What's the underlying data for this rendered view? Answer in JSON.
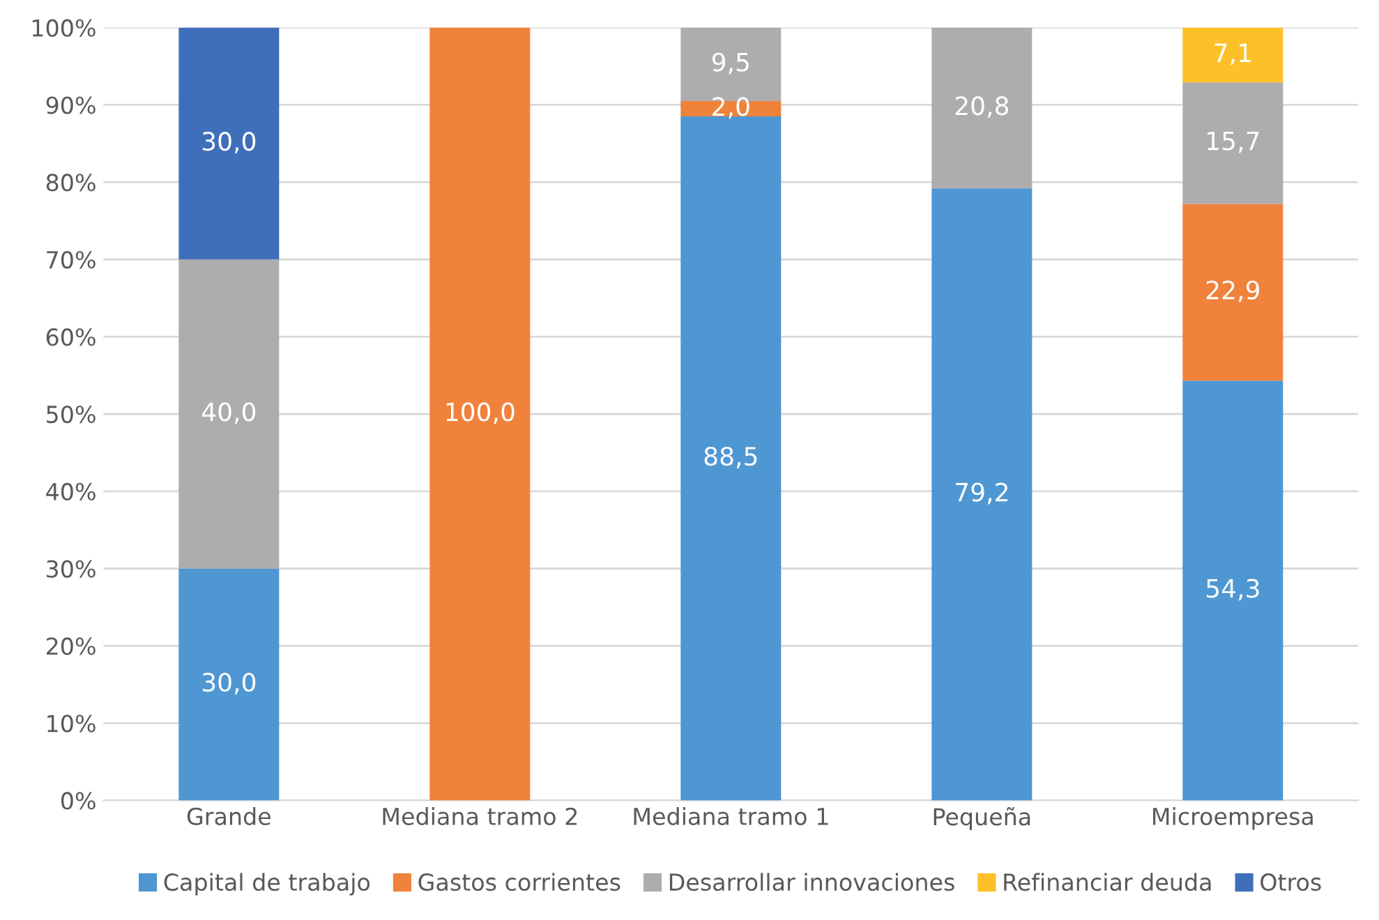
{
  "chart_data": {
    "type": "bar",
    "stacked": true,
    "categories": [
      "Grande",
      "Mediana tramo 2",
      "Mediana tramo 1",
      "Pequeña",
      "Microempresa"
    ],
    "series": [
      {
        "name": "Capital de trabajo",
        "color": "#4e97d2",
        "values": [
          30.0,
          0,
          88.5,
          79.2,
          54.3
        ],
        "value_labels": [
          "30,0",
          null,
          "88,5",
          "79,2",
          "54,3"
        ]
      },
      {
        "name": "Gastos corrientes",
        "color": "#f0823b",
        "values": [
          0,
          100.0,
          2.0,
          0,
          22.9
        ],
        "value_labels": [
          null,
          "100,0",
          "2,0",
          null,
          "22,9"
        ]
      },
      {
        "name": "Desarrollar innovaciones",
        "color": "#adadb0",
        "values": [
          40.0,
          0,
          9.5,
          20.8,
          15.7
        ],
        "value_labels": [
          "40,0",
          null,
          "9,5",
          "20,8",
          "15,7"
        ]
      },
      {
        "name": "Refinanciar deuda",
        "color": "#fdc028",
        "values": [
          0,
          0,
          0,
          0,
          7.1
        ],
        "value_labels": [
          null,
          null,
          null,
          null,
          "7,1"
        ]
      },
      {
        "name": "Otros",
        "color": "#3f6fbb",
        "values": [
          30.0,
          0,
          0,
          0,
          0
        ],
        "value_labels": [
          "30,0",
          null,
          null,
          null,
          null
        ]
      }
    ],
    "ylim": [
      0,
      100
    ],
    "yticks": [
      {
        "value": 0,
        "label": "0%"
      },
      {
        "value": 10,
        "label": "10%"
      },
      {
        "value": 20,
        "label": "20%"
      },
      {
        "value": 30,
        "label": "30%"
      },
      {
        "value": 40,
        "label": "40%"
      },
      {
        "value": 50,
        "label": "50%"
      },
      {
        "value": 60,
        "label": "60%"
      },
      {
        "value": 70,
        "label": "70%"
      },
      {
        "value": 80,
        "label": "80%"
      },
      {
        "value": 90,
        "label": "90%"
      },
      {
        "value": 100,
        "label": "100%"
      }
    ],
    "grid": "y",
    "legend": "bottom"
  }
}
